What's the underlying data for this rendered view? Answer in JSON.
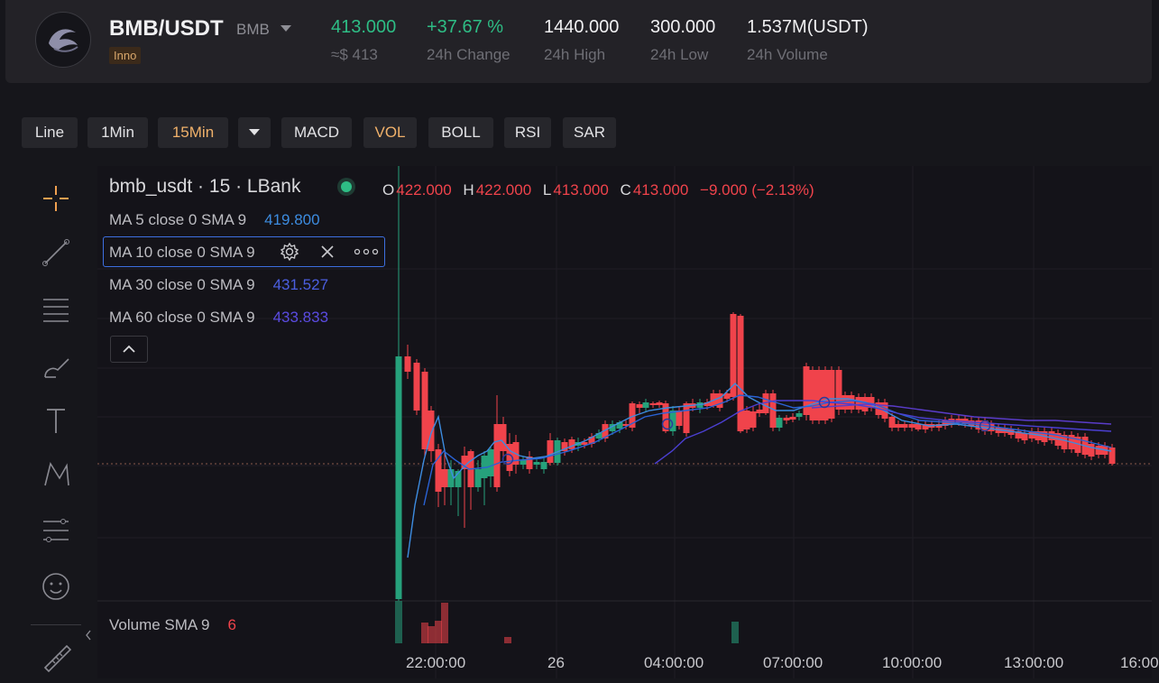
{
  "header": {
    "pair": "BMB/USDT",
    "pair_sub": "BMB",
    "badge": "Inno",
    "last_price": "413.000",
    "last_price_usd": "≈$ 413",
    "change": "+37.67 %",
    "change_label": "24h Change",
    "high": "1440.000",
    "high_label": "24h High",
    "low": "300.000",
    "low_label": "24h Low",
    "volume": "1.537M(USDT)",
    "volume_label": "24h Volume"
  },
  "toolbar": {
    "line": "Line",
    "m1": "1Min",
    "m15": "15Min",
    "macd": "MACD",
    "vol": "VOL",
    "boll": "BOLL",
    "rsi": "RSI",
    "sar": "SAR"
  },
  "legend": {
    "symbol": "bmb_usdt · 15 · LBank",
    "o_label": "O",
    "o_val": "422.000",
    "h_label": "H",
    "h_val": "422.000",
    "l_label": "L",
    "l_val": "413.000",
    "c_label": "C",
    "c_val": "413.000",
    "change": "−9.000 (−2.13%)",
    "ma5": "MA 5 close 0 SMA 9",
    "ma5_val": "419.800",
    "ma10": "MA 10 close 0 SMA 9",
    "ma30": "MA 30 close 0 SMA 9",
    "ma30_val": "431.527",
    "ma60": "MA 60 close 0 SMA 9",
    "ma60_val": "433.833",
    "volume": "Volume SMA 9",
    "volume_val": "6"
  },
  "x_labels": [
    "22:00:00",
    "26",
    "04:00:00",
    "07:00:00",
    "10:00:00",
    "13:00:00",
    "16:00"
  ],
  "colors": {
    "up": "#26a17b",
    "down": "#f0434b",
    "ma5": "#3d8ce0",
    "ma10": "#2a63d6",
    "ma30": "#4b3fd1",
    "ma60": "#5a3cc9"
  }
}
